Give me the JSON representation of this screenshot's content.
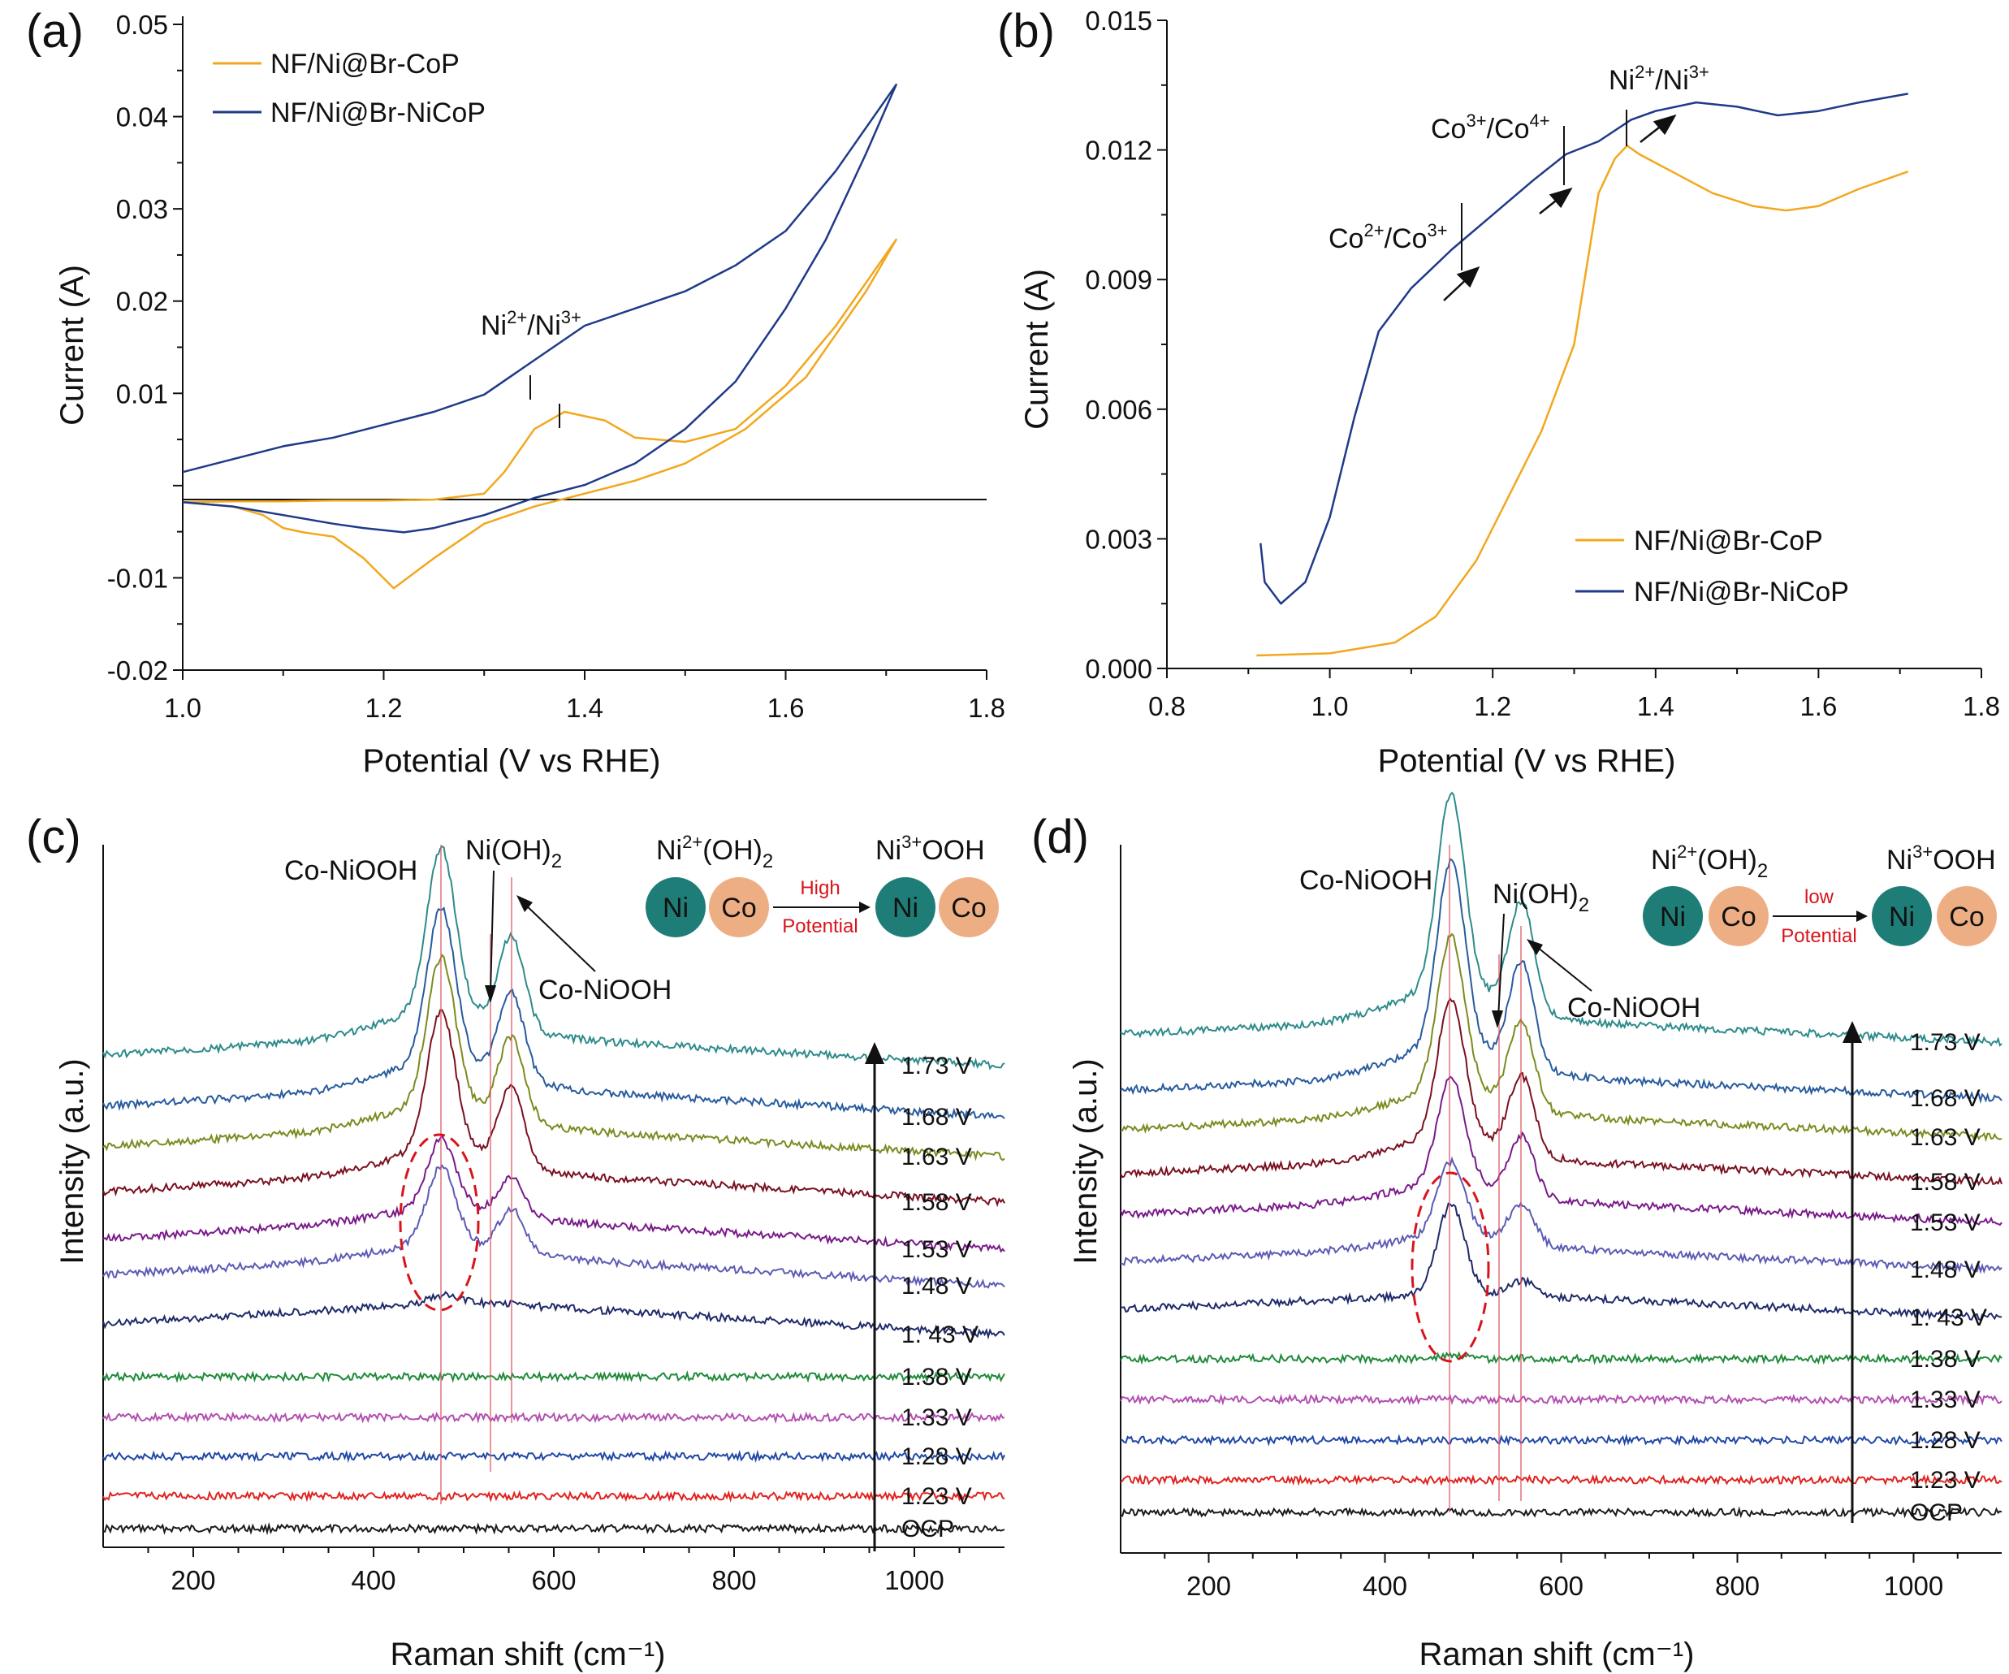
{
  "panels": {
    "a": {
      "label": "(a)"
    },
    "b": {
      "label": "(b)"
    },
    "c": {
      "label": "(c)"
    },
    "d": {
      "label": "(d)"
    }
  },
  "colors": {
    "cop": "#f2a81d",
    "nicop": "#1f3a8a",
    "ni_circle": "#1f7d78",
    "co_circle": "#eeae84",
    "red": "#d8141b",
    "spectra": [
      "#1b1b1b",
      "#e0231f",
      "#2248a6",
      "#b34fb0",
      "#1f8a3a",
      "#1f2a6a",
      "#5c5bb5",
      "#7a1a8a",
      "#7a1020",
      "#7d8a20",
      "#275b9e",
      "#2e8b8b"
    ]
  },
  "chart_data": [
    {
      "panel": "a",
      "type": "line",
      "xlabel": "Potential (V vs RHE)",
      "ylabel": "Current (A)",
      "xlim": [
        1.0,
        1.8
      ],
      "ylim": [
        -0.02,
        0.055
      ],
      "xticks": [
        "1.0",
        "1.2",
        "1.4",
        "1.6",
        "1.8"
      ],
      "yticks": [
        "-0.02",
        "-0.01",
        "",
        "0.01",
        "0.02",
        "0.03",
        "0.04",
        "0.05"
      ],
      "annotation": "Ni2+/Ni3+",
      "series": [
        {
          "name": "NF/Ni@Br-CoP",
          "x": [
            1.0,
            1.05,
            1.1,
            1.15,
            1.2,
            1.25,
            1.3,
            1.32,
            1.35,
            1.38,
            1.42,
            1.45,
            1.5,
            1.55,
            1.6,
            1.65,
            1.71,
            1.71,
            1.68,
            1.62,
            1.56,
            1.5,
            1.45,
            1.4,
            1.35,
            1.3,
            1.25,
            1.21,
            1.18,
            1.15,
            1.12,
            1.1,
            1.08,
            1.05,
            1.0
          ],
          "y": [
            -0.0005,
            -0.0004,
            -0.0004,
            -0.0003,
            -0.0003,
            -0.0002,
            0.0005,
            0.003,
            0.008,
            0.01,
            0.009,
            0.007,
            0.0065,
            0.008,
            0.013,
            0.02,
            0.03,
            0.03,
            0.024,
            0.014,
            0.008,
            0.004,
            0.002,
            0.0005,
            -0.001,
            -0.003,
            -0.007,
            -0.0105,
            -0.007,
            -0.0045,
            -0.004,
            -0.0035,
            -0.002,
            -0.001,
            -0.0005
          ]
        },
        {
          "name": "NF/Ni@Br-NiCoP",
          "x": [
            1.0,
            1.05,
            1.1,
            1.15,
            1.2,
            1.25,
            1.3,
            1.35,
            1.4,
            1.45,
            1.5,
            1.55,
            1.6,
            1.65,
            1.71,
            1.71,
            1.68,
            1.64,
            1.6,
            1.55,
            1.5,
            1.45,
            1.4,
            1.35,
            1.3,
            1.25,
            1.22,
            1.18,
            1.15,
            1.1,
            1.05,
            1.0
          ],
          "y": [
            0.003,
            0.0045,
            0.006,
            0.007,
            0.0085,
            0.01,
            0.012,
            0.016,
            0.02,
            0.022,
            0.024,
            0.027,
            0.031,
            0.038,
            0.048,
            0.048,
            0.04,
            0.03,
            0.022,
            0.0135,
            0.008,
            0.004,
            0.0015,
            0.0,
            -0.002,
            -0.0035,
            -0.004,
            -0.0035,
            -0.003,
            -0.002,
            -0.001,
            -0.0005
          ]
        }
      ]
    },
    {
      "panel": "b",
      "type": "line",
      "xlabel": "Potential (V vs RHE)",
      "ylabel": "Current (A)",
      "xlim": [
        0.8,
        1.8
      ],
      "ylim": [
        0.0,
        0.015
      ],
      "xticks": [
        "0.8",
        "1.0",
        "1.2",
        "1.4",
        "1.6",
        "1.8"
      ],
      "yticks": [
        "0.000",
        "0.003",
        "0.006",
        "0.009",
        "0.012",
        "0.015"
      ],
      "annotations": [
        "Co2+/Co3+",
        "Co3+/Co4+",
        "Ni2+/Ni3+"
      ],
      "series": [
        {
          "name": "NF/Ni@Br-CoP",
          "x": [
            0.91,
            1.0,
            1.08,
            1.13,
            1.18,
            1.22,
            1.26,
            1.3,
            1.33,
            1.35,
            1.365,
            1.38,
            1.42,
            1.47,
            1.52,
            1.56,
            1.6,
            1.65,
            1.71
          ],
          "y": [
            0.0003,
            0.00035,
            0.0006,
            0.0012,
            0.0025,
            0.004,
            0.0055,
            0.0075,
            0.011,
            0.0118,
            0.0121,
            0.0119,
            0.0115,
            0.011,
            0.0107,
            0.0106,
            0.0107,
            0.0111,
            0.0115
          ]
        },
        {
          "name": "NF/Ni@Br-NiCoP",
          "x": [
            0.915,
            0.92,
            0.94,
            0.97,
            1.0,
            1.03,
            1.06,
            1.1,
            1.15,
            1.2,
            1.25,
            1.29,
            1.33,
            1.37,
            1.4,
            1.45,
            1.5,
            1.55,
            1.6,
            1.65,
            1.71
          ],
          "y": [
            0.0029,
            0.002,
            0.0015,
            0.002,
            0.0035,
            0.0058,
            0.0078,
            0.0088,
            0.0097,
            0.0105,
            0.0113,
            0.0119,
            0.0122,
            0.0127,
            0.0129,
            0.0131,
            0.013,
            0.0128,
            0.0129,
            0.0131,
            0.0133
          ]
        }
      ]
    },
    {
      "panel": "c",
      "type": "line",
      "xlabel": "Raman shift (cm⁻¹)",
      "ylabel": "Intensity (a.u.)",
      "xlim": [
        100,
        1100
      ],
      "xticks": [
        "200",
        "400",
        "600",
        "800",
        "1000"
      ],
      "potentials": [
        "OCP",
        "1.23 V",
        "1.28 V",
        "1.33 V",
        "1.38 V",
        "1. 43 V",
        "1.48 V",
        "1.53 V",
        "1.58 V",
        "1.63 V",
        "1.68 V",
        "1.73 V"
      ],
      "peak_amplitudes": [
        0,
        0,
        0,
        0,
        0,
        10,
        95,
        85,
        170,
        180,
        190,
        200
      ],
      "peak_labels": [
        "Co-NiOOH",
        "Ni(OH)2",
        "Co-NiOOH"
      ],
      "inset": {
        "left": "Ni2+(OH)2",
        "right": "Ni3+OOH",
        "arrow_top": "High",
        "arrow_bottom": "Potential",
        "ni": "Ni",
        "co": "Co"
      }
    },
    {
      "panel": "d",
      "type": "line",
      "xlabel": "Raman shift (cm⁻¹)",
      "ylabel": "Intensity (a.u.)",
      "xlim": [
        100,
        1100
      ],
      "xticks": [
        "200",
        "400",
        "600",
        "800",
        "1000"
      ],
      "potentials": [
        "OCP",
        "1.23 V",
        "1.28 V",
        "1.33 V",
        "1.38 V",
        "1. 43 V",
        "1.48 V",
        "1.53 V",
        "1.58 V",
        "1.63 V",
        "1.68 V",
        "1.73 V"
      ],
      "peak_amplitudes": [
        0,
        0,
        0,
        0,
        5,
        110,
        90,
        130,
        170,
        190,
        230,
        240
      ],
      "peak_labels": [
        "Co-NiOOH",
        "Ni(OH)2",
        "Co-NiOOH"
      ],
      "inset": {
        "left": "Ni2+(OH)2",
        "right": "Ni3+OOH",
        "arrow_top": "low",
        "arrow_bottom": "Potential",
        "ni": "Ni",
        "co": "Co"
      }
    }
  ]
}
